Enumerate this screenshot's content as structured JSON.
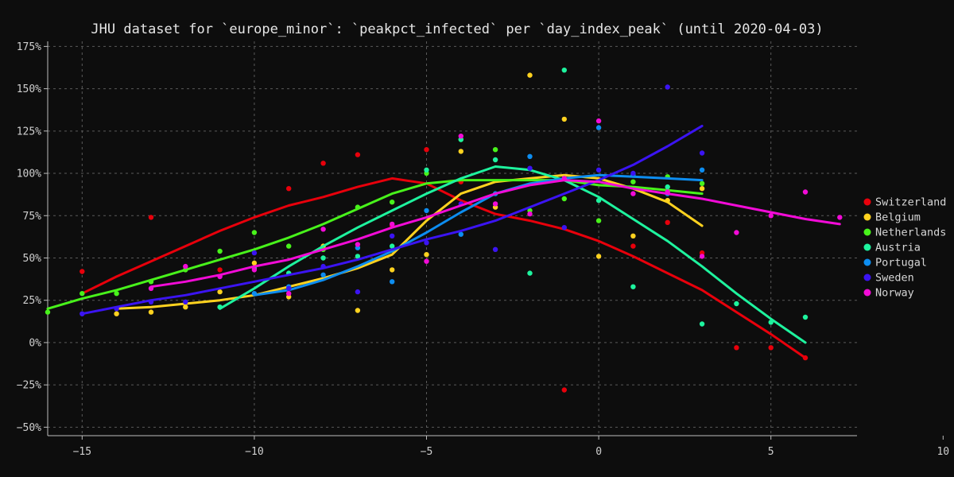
{
  "chart_data": {
    "type": "scatter",
    "title": "JHU dataset for `europe_minor`: `peakpct_infected` per `day_index_peak` (until 2020-04-03)",
    "xlabel": "",
    "ylabel": "",
    "xlim": [
      -16,
      7.5
    ],
    "ylim": [
      -55,
      178
    ],
    "x_ticks": [
      -15,
      -10,
      -5,
      0,
      5,
      10
    ],
    "x_tick_labels": [
      "−15",
      "−10",
      "−5",
      "0",
      "5",
      "10"
    ],
    "y_ticks": [
      -50,
      -25,
      0,
      25,
      50,
      75,
      100,
      125,
      150,
      175
    ],
    "y_tick_labels": [
      "−50%",
      "−25%",
      "0%",
      "25%",
      "50%",
      "75%",
      "100%",
      "125%",
      "150%",
      "175%"
    ],
    "grid": true,
    "legend_position": "right",
    "series": [
      {
        "name": "Switzerland",
        "color": "#e8000b",
        "points": [
          [
            -15,
            42
          ],
          [
            -13,
            74
          ],
          [
            -11,
            43
          ],
          [
            -9,
            91
          ],
          [
            -8,
            106
          ],
          [
            -7,
            111
          ],
          [
            -6,
            69
          ],
          [
            -5,
            114
          ],
          [
            -4,
            95
          ],
          [
            -1,
            -28
          ],
          [
            1,
            57
          ],
          [
            2,
            71
          ],
          [
            3,
            53
          ],
          [
            4,
            -3
          ],
          [
            5,
            -3
          ],
          [
            6,
            -9
          ]
        ],
        "trend": [
          [
            -15,
            29
          ],
          [
            -14,
            39
          ],
          [
            -13,
            48
          ],
          [
            -12,
            57
          ],
          [
            -11,
            66
          ],
          [
            -10,
            74
          ],
          [
            -9,
            81
          ],
          [
            -8,
            86
          ],
          [
            -7,
            92
          ],
          [
            -6,
            97
          ],
          [
            -5,
            94
          ],
          [
            -4,
            84
          ],
          [
            -3,
            76
          ],
          [
            -2,
            72
          ],
          [
            -1,
            67
          ],
          [
            0,
            60
          ],
          [
            1,
            51
          ],
          [
            2,
            41
          ],
          [
            3,
            31
          ],
          [
            4,
            18
          ],
          [
            5,
            5
          ],
          [
            6,
            -9
          ]
        ]
      },
      {
        "name": "Belgium",
        "color": "#ffd21f",
        "points": [
          [
            -14,
            17
          ],
          [
            -13,
            18
          ],
          [
            -12,
            21
          ],
          [
            -11,
            30
          ],
          [
            -10,
            47
          ],
          [
            -9,
            27
          ],
          [
            -8,
            57
          ],
          [
            -7,
            19
          ],
          [
            -6,
            43
          ],
          [
            -5,
            52
          ],
          [
            -4,
            113
          ],
          [
            -3,
            80
          ],
          [
            -2,
            158
          ],
          [
            -1,
            132
          ],
          [
            0,
            51
          ],
          [
            1,
            63
          ],
          [
            2,
            84
          ],
          [
            3,
            91
          ]
        ],
        "trend": [
          [
            -14,
            20
          ],
          [
            -13,
            21
          ],
          [
            -12,
            23
          ],
          [
            -11,
            25
          ],
          [
            -10,
            28
          ],
          [
            -9,
            33
          ],
          [
            -8,
            38
          ],
          [
            -7,
            44
          ],
          [
            -6,
            52
          ],
          [
            -5,
            72
          ],
          [
            -4,
            88
          ],
          [
            -3,
            95
          ],
          [
            -2,
            97
          ],
          [
            -1,
            99
          ],
          [
            0,
            97
          ],
          [
            1,
            91
          ],
          [
            2,
            83
          ],
          [
            3,
            69
          ]
        ]
      },
      {
        "name": "Netherlands",
        "color": "#48f21b",
        "points": [
          [
            -16,
            18
          ],
          [
            -15,
            29
          ],
          [
            -14,
            29
          ],
          [
            -13,
            36
          ],
          [
            -12,
            43
          ],
          [
            -11,
            54
          ],
          [
            -10,
            65
          ],
          [
            -9,
            57
          ],
          [
            -8,
            55
          ],
          [
            -7,
            80
          ],
          [
            -6,
            83
          ],
          [
            -5,
            100
          ],
          [
            -4,
            120
          ],
          [
            -3,
            114
          ],
          [
            -2,
            78
          ],
          [
            -1,
            85
          ],
          [
            0,
            72
          ],
          [
            1,
            95
          ],
          [
            2,
            98
          ],
          [
            3,
            94
          ]
        ],
        "trend": [
          [
            -16,
            20
          ],
          [
            -15,
            26
          ],
          [
            -14,
            31
          ],
          [
            -13,
            37
          ],
          [
            -12,
            43
          ],
          [
            -11,
            49
          ],
          [
            -10,
            55
          ],
          [
            -9,
            62
          ],
          [
            -8,
            70
          ],
          [
            -7,
            79
          ],
          [
            -6,
            88
          ],
          [
            -5,
            94
          ],
          [
            -4,
            96
          ],
          [
            -3,
            96
          ],
          [
            -2,
            96
          ],
          [
            -1,
            96
          ],
          [
            0,
            93
          ],
          [
            1,
            92
          ],
          [
            2,
            90
          ],
          [
            3,
            88
          ]
        ]
      },
      {
        "name": "Austria",
        "color": "#1ef39e",
        "points": [
          [
            -11,
            21
          ],
          [
            -10,
            44
          ],
          [
            -9,
            41
          ],
          [
            -8,
            50
          ],
          [
            -7,
            51
          ],
          [
            -6,
            57
          ],
          [
            -5,
            102
          ],
          [
            -4,
            120
          ],
          [
            -3,
            108
          ],
          [
            -2,
            41
          ],
          [
            -1,
            161
          ],
          [
            0,
            84
          ],
          [
            1,
            33
          ],
          [
            2,
            92
          ],
          [
            3,
            11
          ],
          [
            4,
            23
          ],
          [
            5,
            12
          ],
          [
            6,
            15
          ]
        ],
        "trend": [
          [
            -11,
            20
          ],
          [
            -10,
            32
          ],
          [
            -9,
            45
          ],
          [
            -8,
            57
          ],
          [
            -7,
            68
          ],
          [
            -6,
            78
          ],
          [
            -5,
            88
          ],
          [
            -4,
            97
          ],
          [
            -3,
            104
          ],
          [
            -2,
            102
          ],
          [
            -1,
            96
          ],
          [
            0,
            86
          ],
          [
            1,
            73
          ],
          [
            2,
            60
          ],
          [
            3,
            45
          ],
          [
            4,
            29
          ],
          [
            5,
            14
          ],
          [
            6,
            0
          ]
        ]
      },
      {
        "name": "Portugal",
        "color": "#0d8df0",
        "points": [
          [
            -10,
            29
          ],
          [
            -9,
            33
          ],
          [
            -8,
            40
          ],
          [
            -7,
            56
          ],
          [
            -6,
            36
          ],
          [
            -5,
            78
          ],
          [
            -4,
            64
          ],
          [
            -3,
            88
          ],
          [
            -2,
            110
          ],
          [
            -1,
            97
          ],
          [
            0,
            127
          ],
          [
            1,
            99
          ],
          [
            2,
            88
          ],
          [
            3,
            102
          ]
        ],
        "trend": [
          [
            -10,
            28
          ],
          [
            -9,
            31
          ],
          [
            -8,
            37
          ],
          [
            -7,
            45
          ],
          [
            -6,
            54
          ],
          [
            -5,
            65
          ],
          [
            -4,
            77
          ],
          [
            -3,
            88
          ],
          [
            -2,
            94
          ],
          [
            -1,
            97
          ],
          [
            0,
            99
          ],
          [
            1,
            98
          ],
          [
            2,
            97
          ],
          [
            3,
            96
          ]
        ]
      },
      {
        "name": "Sweden",
        "color": "#3b14f2",
        "points": [
          [
            -15,
            17
          ],
          [
            -14,
            20
          ],
          [
            -13,
            24
          ],
          [
            -12,
            24
          ],
          [
            -11,
            39
          ],
          [
            -10,
            53
          ],
          [
            -9,
            32
          ],
          [
            -8,
            45
          ],
          [
            -7,
            30
          ],
          [
            -6,
            63
          ],
          [
            -5,
            59
          ],
          [
            -4,
            82
          ],
          [
            -3,
            55
          ],
          [
            -2,
            103
          ],
          [
            -1,
            68
          ],
          [
            0,
            102
          ],
          [
            1,
            100
          ],
          [
            2,
            151
          ],
          [
            3,
            112
          ]
        ],
        "trend": [
          [
            -15,
            17
          ],
          [
            -14,
            21
          ],
          [
            -13,
            25
          ],
          [
            -12,
            28
          ],
          [
            -11,
            32
          ],
          [
            -10,
            36
          ],
          [
            -9,
            40
          ],
          [
            -8,
            44
          ],
          [
            -7,
            49
          ],
          [
            -6,
            55
          ],
          [
            -5,
            61
          ],
          [
            -4,
            66
          ],
          [
            -3,
            72
          ],
          [
            -2,
            80
          ],
          [
            -1,
            88
          ],
          [
            0,
            96
          ],
          [
            1,
            105
          ],
          [
            2,
            116
          ],
          [
            3,
            128
          ]
        ]
      },
      {
        "name": "Norway",
        "color": "#f20bd7",
        "points": [
          [
            -13,
            32
          ],
          [
            -12,
            45
          ],
          [
            -11,
            39
          ],
          [
            -10,
            43
          ],
          [
            -9,
            29
          ],
          [
            -8,
            67
          ],
          [
            -7,
            58
          ],
          [
            -6,
            70
          ],
          [
            -5,
            48
          ],
          [
            -4,
            122
          ],
          [
            -3,
            82
          ],
          [
            -2,
            76
          ],
          [
            -1,
            97
          ],
          [
            0,
            131
          ],
          [
            1,
            88
          ],
          [
            2,
            89
          ],
          [
            3,
            51
          ],
          [
            4,
            65
          ],
          [
            5,
            75
          ],
          [
            6,
            89
          ],
          [
            7,
            74
          ]
        ],
        "trend": [
          [
            -13,
            33
          ],
          [
            -12,
            36
          ],
          [
            -11,
            40
          ],
          [
            -10,
            45
          ],
          [
            -9,
            49
          ],
          [
            -8,
            55
          ],
          [
            -7,
            61
          ],
          [
            -6,
            68
          ],
          [
            -5,
            74
          ],
          [
            -4,
            81
          ],
          [
            -3,
            88
          ],
          [
            -2,
            93
          ],
          [
            -1,
            96
          ],
          [
            0,
            95
          ],
          [
            1,
            91
          ],
          [
            2,
            88
          ],
          [
            3,
            85
          ],
          [
            4,
            81
          ],
          [
            5,
            77
          ],
          [
            6,
            73
          ],
          [
            7,
            70
          ]
        ]
      }
    ]
  }
}
